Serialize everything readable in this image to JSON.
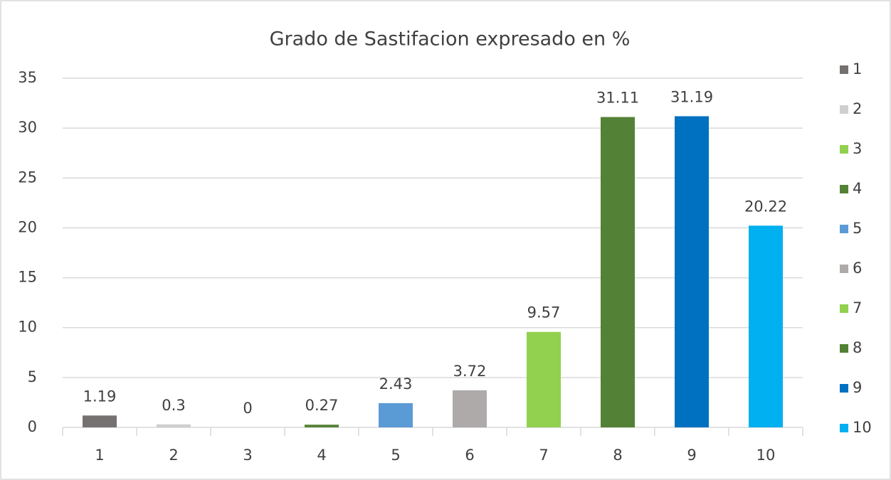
{
  "chart_data": {
    "type": "bar",
    "title": "Grado de Sastifacion expresado en %",
    "categories": [
      "1",
      "2",
      "3",
      "4",
      "5",
      "6",
      "7",
      "8",
      "9",
      "10"
    ],
    "values": [
      1.19,
      0.3,
      0,
      0.27,
      2.43,
      3.72,
      9.57,
      31.11,
      31.19,
      20.22
    ],
    "colors": [
      "#767171",
      "#d0cece",
      "#92d050",
      "#548235",
      "#5b9bd5",
      "#aeaaaa",
      "#92d050",
      "#538135",
      "#0070c0",
      "#00b0f0"
    ],
    "ylim": [
      0,
      35
    ],
    "yticks": [
      0,
      5,
      10,
      15,
      20,
      25,
      30,
      35
    ],
    "grid": true,
    "legend": "right"
  }
}
